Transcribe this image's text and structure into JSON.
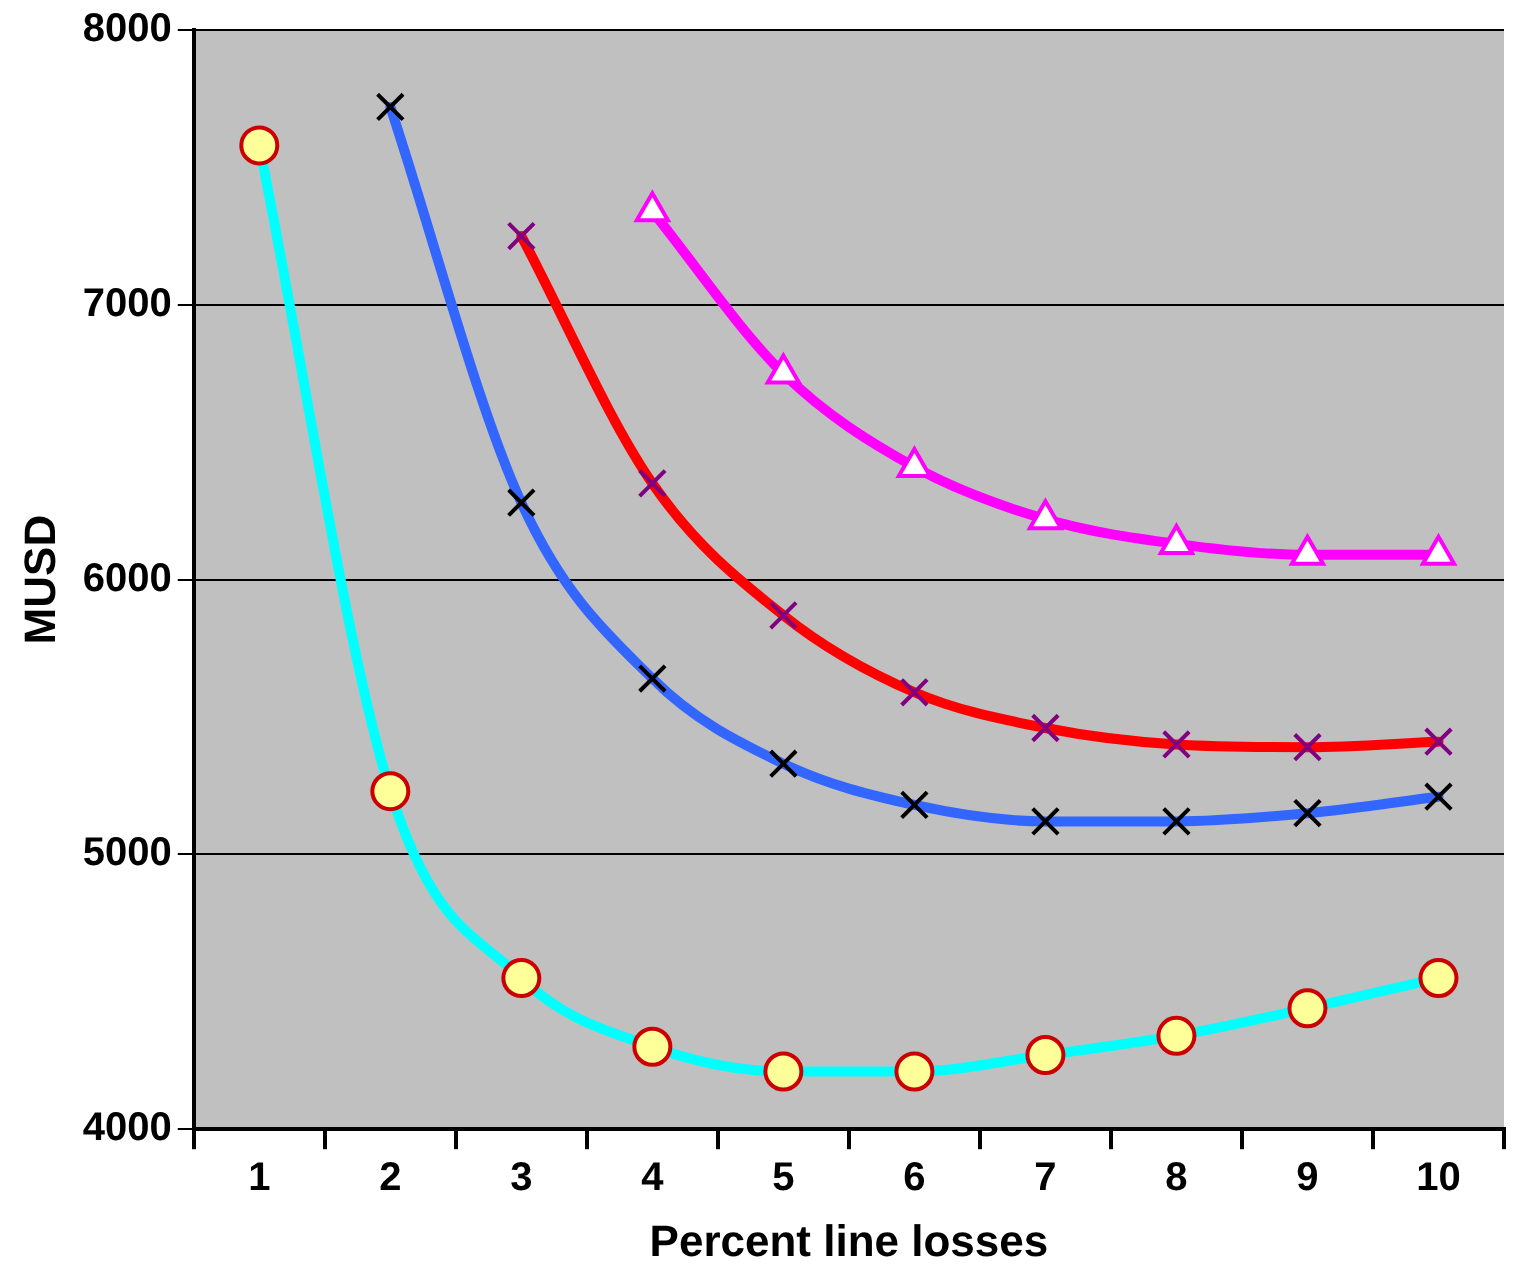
{
  "chart_data": {
    "type": "line",
    "xlabel": "Percent line losses",
    "ylabel": "MUSD",
    "categories": [
      "1",
      "2",
      "3",
      "4",
      "5",
      "6",
      "7",
      "8",
      "9",
      "10"
    ],
    "series": [
      {
        "color": "#00ffff",
        "marker": "circle",
        "values": [
          7580,
          5230,
          4550,
          4300,
          4210,
          4210,
          4270,
          4340,
          4440,
          4550
        ]
      },
      {
        "color": "#3366ff",
        "marker": "cross",
        "values": [
          null,
          7720,
          6280,
          5640,
          5330,
          5180,
          5120,
          5120,
          5150,
          5210
        ]
      },
      {
        "color": "#ff0000",
        "marker": "cross",
        "values": [
          null,
          null,
          7250,
          6350,
          5870,
          5590,
          5460,
          5400,
          5390,
          5410
        ]
      },
      {
        "color": "#ff00ff",
        "marker": "triangle",
        "values": [
          null,
          null,
          null,
          7340,
          6750,
          6410,
          6220,
          6130,
          6090,
          6090
        ]
      }
    ],
    "ylim": [
      4000,
      8000
    ],
    "yticks": [
      4000,
      5000,
      6000,
      7000,
      8000
    ],
    "grid": "y",
    "legend": false,
    "line_style": "solid"
  }
}
